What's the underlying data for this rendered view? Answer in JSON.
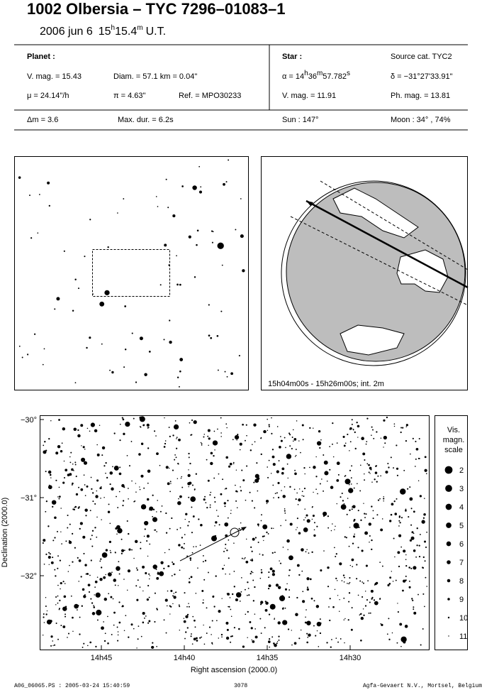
{
  "header": {
    "title": "1002 Olbersia  –  TYC 7296–01083–1",
    "date": "2006 jun  6",
    "time": [
      "15",
      "h",
      "15.4",
      "m",
      "U.T."
    ]
  },
  "planet": {
    "heading": "Planet :",
    "vmag": "V. mag. = 15.43",
    "diam": "Diam. = 57.1 km = 0.04\"",
    "mu": "μ =  24.14\"/h",
    "pi": "π =  4.63\"",
    "ref": "Ref. = MPO30233",
    "dm": "Δm = 3.6",
    "maxdur": "Max. dur. = 6.2s"
  },
  "star": {
    "heading": "Star :",
    "source": "Source cat.  TYC2",
    "ra": [
      "α = 14",
      "h",
      "36",
      "m",
      "57.782",
      "s"
    ],
    "dec": "δ = −31°27'33.91\"",
    "vmag": "V. mag. = 11.91",
    "phmag": "Ph. mag. = 13.81",
    "sun": "Sun : 147°",
    "moon": "Moon :  34° , 74%"
  },
  "globe": {
    "caption": "15h04m00s - 15h26m00s; int.  2m"
  },
  "sky_chart": {
    "xlabel": "Right ascension (2000.0)",
    "ylabel": "Declination (2000.0)",
    "xticks": [
      "14h45",
      "14h40",
      "14h35",
      "14h30"
    ],
    "yticks": [
      "−30°",
      "−31°",
      "−32°"
    ]
  },
  "scale": {
    "title": [
      "Vis.",
      "magn.",
      "scale"
    ],
    "mags": [
      2,
      3,
      4,
      5,
      6,
      7,
      8,
      9,
      10,
      11
    ]
  },
  "footer": {
    "file": "A06_06065.PS : 2005-03-24 15:40:59",
    "number": "3078",
    "credit": "Agfa-Gevaert N.V., Mortsel, Belgium"
  }
}
